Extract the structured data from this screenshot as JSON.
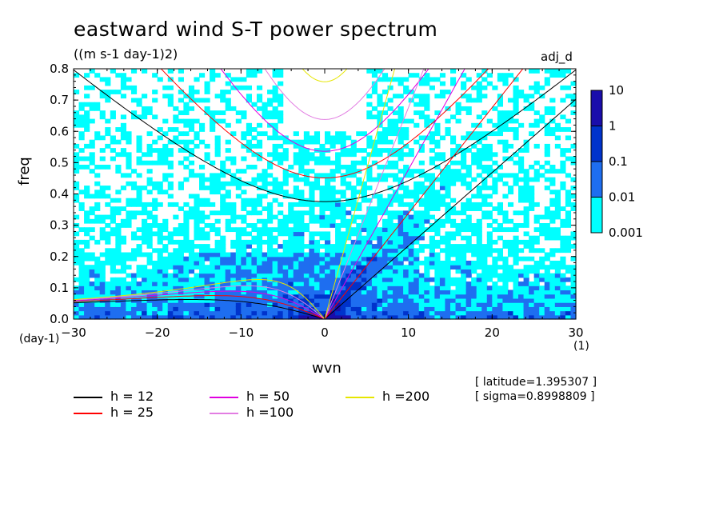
{
  "title": "eastward wind S-T power spectrum",
  "units_label": "((m s-1 day-1)2)",
  "tag": "adj_d",
  "info": {
    "latitude": "[ latitude=1.395307 ]",
    "sigma": "[ sigma=0.8998809 ]"
  },
  "chart_data": {
    "type": "heatmap",
    "title": "eastward wind S-T power spectrum",
    "xlabel": "wvn",
    "ylabel": "freq",
    "x_unit": "(1)",
    "y_unit": "(day-1)",
    "xlim": [
      -30,
      30
    ],
    "ylim": [
      0,
      0.8
    ],
    "x_ticks": [
      -30,
      -20,
      -10,
      0,
      10,
      20,
      30
    ],
    "y_ticks": [
      0.0,
      0.1,
      0.2,
      0.3,
      0.4,
      0.5,
      0.6,
      0.7,
      0.8
    ],
    "colorbar": {
      "levels": [
        0.001,
        0.01,
        0.1,
        1,
        10
      ],
      "level_labels": [
        "0.001",
        "0.01",
        "0.1",
        "1",
        "10"
      ],
      "colors": [
        "#00ffff",
        "#1e6ef0",
        "#0033cc",
        "#1a0dab"
      ]
    },
    "dispersion_curves": [
      {
        "name": "h = 12",
        "h": 12,
        "color": "#000000"
      },
      {
        "name": "h = 25",
        "h": 25,
        "color": "#ff0000"
      },
      {
        "name": "h = 50",
        "h": 50,
        "color": "#e000e0"
      },
      {
        "name": "h =100",
        "h": 100,
        "color": "#e27de2"
      },
      {
        "name": "h =200",
        "h": 200,
        "color": "#e6e600"
      }
    ]
  }
}
